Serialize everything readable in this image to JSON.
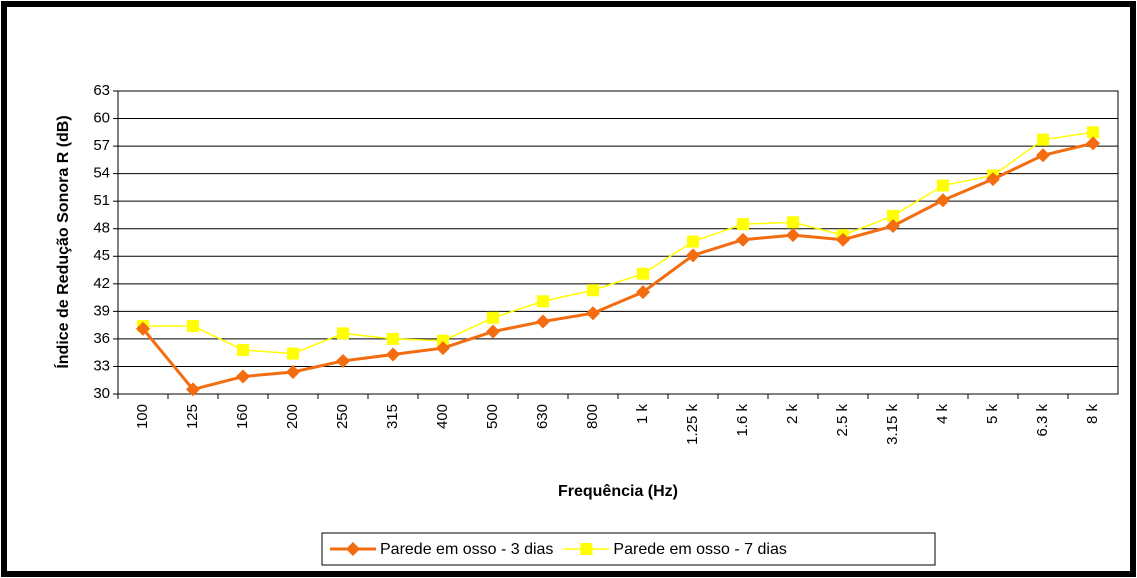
{
  "chart_data": {
    "type": "line",
    "x_label": "Frequência (Hz)",
    "y_label": "Índice de Redução Sonora R (dB)",
    "categories": [
      "100",
      "125",
      "160",
      "200",
      "250",
      "315",
      "400",
      "500",
      "630",
      "800",
      "1 k",
      "1.25 k",
      "1.6 k",
      "2 k",
      "2.5 k",
      "3.15 k",
      "4 k",
      "5 k",
      "6.3 k",
      "8 k"
    ],
    "series": [
      {
        "name": "Parede em osso - 3 dias",
        "color": "#f36c10",
        "marker": "diamond",
        "values": [
          37.1,
          30.5,
          31.9,
          32.4,
          33.6,
          34.3,
          35.0,
          36.8,
          37.9,
          38.8,
          41.1,
          45.1,
          46.8,
          47.3,
          46.8,
          48.3,
          51.1,
          53.4,
          56.0,
          57.3
        ]
      },
      {
        "name": "Parede em osso - 7 dias",
        "color": "#ffff00",
        "marker": "square",
        "values": [
          37.4,
          37.4,
          34.8,
          34.4,
          36.6,
          36.0,
          35.8,
          38.3,
          40.1,
          41.3,
          43.1,
          46.6,
          48.5,
          48.7,
          47.3,
          49.4,
          52.7,
          53.8,
          57.7,
          58.5
        ]
      }
    ],
    "ylim": [
      30,
      63
    ],
    "yticks": [
      30,
      33,
      36,
      39,
      42,
      45,
      48,
      51,
      54,
      57,
      60,
      63
    ],
    "grid": true,
    "legend": "bottom"
  }
}
